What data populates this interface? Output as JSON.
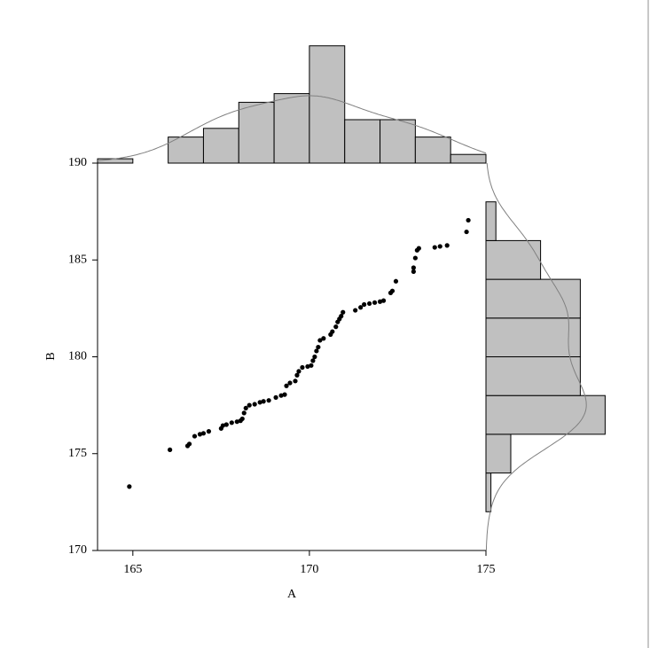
{
  "chart_data": {
    "type": "scatter",
    "x_label": "A",
    "y_label": "B",
    "xlim": [
      164,
      175
    ],
    "ylim": [
      170,
      190
    ],
    "xticks": [
      165,
      170,
      175
    ],
    "yticks": [
      170,
      175,
      180,
      185,
      190
    ],
    "color": "#000000",
    "hist_color": "#c0c0c0",
    "x": [
      164.9,
      166.05,
      166.55,
      166.6,
      166.75,
      166.9,
      167.0,
      167.15,
      167.5,
      167.55,
      167.65,
      167.8,
      167.95,
      168.05,
      168.1,
      168.15,
      168.2,
      168.3,
      168.45,
      168.6,
      168.7,
      168.85,
      169.05,
      169.2,
      169.3,
      169.35,
      169.45,
      169.6,
      169.65,
      169.7,
      169.8,
      169.95,
      170.05,
      170.1,
      170.15,
      170.2,
      170.25,
      170.3,
      170.4,
      170.6,
      170.65,
      170.75,
      170.8,
      170.85,
      170.9,
      170.95,
      171.3,
      171.45,
      171.55,
      171.7,
      171.85,
      172.0,
      172.1,
      172.3,
      172.35,
      172.45,
      172.95,
      172.95,
      173.0,
      173.05,
      173.1,
      173.55,
      173.7,
      173.9,
      174.45,
      174.5
    ],
    "y": [
      173.3,
      175.2,
      175.4,
      175.5,
      175.9,
      176.0,
      176.05,
      176.15,
      176.3,
      176.45,
      176.5,
      176.6,
      176.65,
      176.7,
      176.8,
      177.1,
      177.35,
      177.5,
      177.55,
      177.65,
      177.7,
      177.75,
      177.9,
      178.0,
      178.05,
      178.5,
      178.65,
      178.75,
      179.05,
      179.25,
      179.45,
      179.5,
      179.55,
      179.8,
      180.0,
      180.3,
      180.5,
      180.85,
      180.95,
      181.15,
      181.3,
      181.55,
      181.8,
      181.95,
      182.1,
      182.3,
      182.4,
      182.55,
      182.7,
      182.75,
      182.8,
      182.85,
      182.9,
      183.3,
      183.4,
      183.9,
      184.4,
      184.6,
      185.1,
      185.5,
      185.6,
      185.65,
      185.7,
      185.75,
      186.45,
      187.05
    ],
    "top_hist": {
      "bins": [
        164,
        165,
        166,
        167,
        168,
        169,
        170,
        171,
        172,
        173,
        174,
        175
      ],
      "counts": [
        1,
        0,
        6,
        8,
        14,
        16,
        27,
        10,
        10,
        6,
        2
      ]
    },
    "right_hist": {
      "bins": [
        172,
        174,
        176,
        178,
        180,
        182,
        184,
        186,
        188
      ],
      "counts": [
        1,
        5,
        24,
        19,
        19,
        19,
        11,
        2
      ]
    }
  }
}
